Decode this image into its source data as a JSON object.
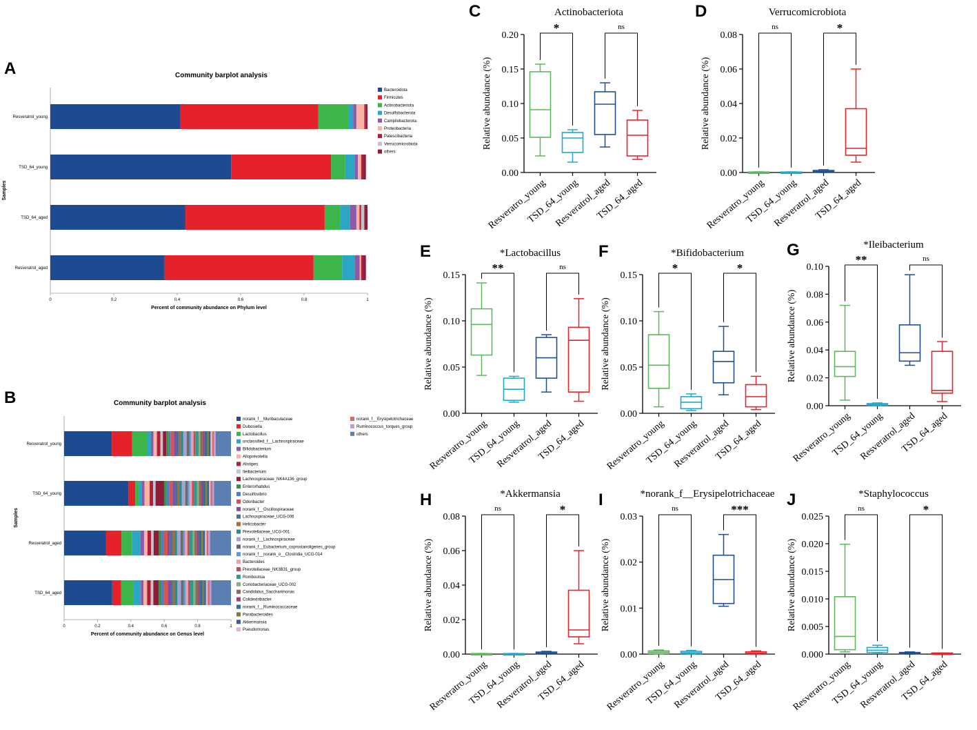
{
  "colors": {
    "green": "#5cb85c",
    "cyan": "#22a7c9",
    "blue": "#1f4e8f",
    "red": "#e0262d",
    "bar_blue": "#1d4a91",
    "bar_red": "#e5222b",
    "bar_green": "#3db54a",
    "bar_cyan": "#2ba6c4",
    "bar_purple": "#8e5aa8",
    "bar_salmon": "#f8b3a3",
    "bar_darkred": "#b01e3a",
    "bar_grey": "#c0c4cc",
    "bar_maroon": "#8f1d3a"
  },
  "stacked_legend_colors": {
    "phylum": [
      "#1d4a91",
      "#e5222b",
      "#3db54a",
      "#2ba6c4",
      "#8e5aa8",
      "#f8b3a3",
      "#b01e3a",
      "#c0c4cc",
      "#8f1d3a"
    ],
    "genus": [
      "#1d4a91",
      "#e5222b",
      "#3db54a",
      "#2ba6c4",
      "#8e5aa8",
      "#f8b3a3",
      "#b01e3a",
      "#c0c4cc",
      "#8f1d3a",
      "#3d8f4a",
      "#4a7fc0",
      "#d9534f",
      "#7c4ea3",
      "#4e6d97",
      "#b06a2b",
      "#2d8a8a",
      "#a3a3d1",
      "#6a6a6a",
      "#5c9bd5",
      "#e8a0b0",
      "#c44d58",
      "#2a9d8f",
      "#8ab07d",
      "#8c6b5e",
      "#a04070",
      "#2c6fa0",
      "#7e7e30",
      "#355e9b",
      "#e8b4c0",
      "#d36a6a",
      "#c39bd3",
      "#5a7fb0"
    ]
  },
  "chart_data": [
    {
      "panel": "A",
      "type": "bar",
      "orientation": "horizontal-stacked",
      "title": "Community barplot analysis",
      "xlabel": "Percent of community abundance on Phylum level",
      "ylabel": "Samples",
      "xlim": [
        0,
        1
      ],
      "xticks": [
        "0",
        "0.2",
        "0.4",
        "0.6",
        "0.8",
        "1"
      ],
      "categories": [
        "Resveratrol_young",
        "TSD_64_young",
        "TSD_64_aged",
        "Resveratrol_aged"
      ],
      "legend": [
        "Bacteroidota",
        "Firmicutes",
        "Actinobacteriota",
        "Desulfobacterota",
        "Campilobacterota",
        "Proteobacteria",
        "Patescibacteria",
        "Verrucomicrobiota",
        "others"
      ],
      "series": [
        {
          "name": "Bacteroidota",
          "values": [
            0.41,
            0.57,
            0.425,
            0.36
          ]
        },
        {
          "name": "Firmicutes",
          "values": [
            0.435,
            0.315,
            0.44,
            0.47
          ]
        },
        {
          "name": "Actinobacteriota",
          "values": [
            0.095,
            0.045,
            0.05,
            0.09
          ]
        },
        {
          "name": "Desulfobacterota",
          "values": [
            0.015,
            0.03,
            0.03,
            0.04
          ]
        },
        {
          "name": "Campilobacterota",
          "values": [
            0.01,
            0.01,
            0.02,
            0.015
          ]
        },
        {
          "name": "Proteobacteria",
          "values": [
            0.025,
            0.01,
            0.01,
            0.005
          ]
        },
        {
          "name": "Patescibacteria",
          "values": [
            0.005,
            0.005,
            0.005,
            0.005
          ]
        },
        {
          "name": "Verrucomicrobiota",
          "values": [
            0.0,
            0.0,
            0.01,
            0.0
          ]
        },
        {
          "name": "others",
          "values": [
            0.005,
            0.01,
            0.01,
            0.01
          ]
        }
      ]
    },
    {
      "panel": "B",
      "type": "bar",
      "orientation": "horizontal-stacked",
      "title": "Community barplot analysis",
      "xlabel": "Percent of community abundance on Genus level",
      "ylabel": "Samples",
      "xlim": [
        0,
        1
      ],
      "xticks": [
        "0",
        "0.2",
        "0.4",
        "0.6",
        "0.8",
        "1"
      ],
      "categories": [
        "Resveratrol_young",
        "TSD_64_young",
        "Resveratrol_aged",
        "TSD_64_aged"
      ],
      "legend": [
        "norank_f__Muribaculaceae",
        "Dubosiella",
        "Lactobacillus",
        "unclassified_f__Lachnospiraceae",
        "Bifidobacterium",
        "Alloprevotella",
        "Alistipes",
        "Ileibacterium",
        "Lachnospiraceae_NK4A136_group",
        "Enterorhabdus",
        "Desulfovibrio",
        "Odoribacter",
        "norank_f__Oscillospiraceae",
        "Lachnospiraceae_UCG-006",
        "Helicobacter",
        "Prevotellaceae_UCG-001",
        "norank_f__Lachnospiraceae",
        "norank_f__Eubacterium_coprostanoligenes_group",
        "norank_f__norank_o__Clostridia_UCG-014",
        "Bacteroides",
        "Prevotellaceae_NK3B31_group",
        "Romboutsia",
        "Coriobacteriaceae_UCG-002",
        "Candidatus_Saccharimonas",
        "Colidextribacter",
        "norank_f__Ruminococcaceae",
        "Parabacteroides",
        "Akkermansia",
        "Pseudomonas",
        "norank_f__Erysipelotrichaceae",
        "Ruminococcus_torques_group",
        "others"
      ],
      "series_totals": [
        [
          0.28,
          0.12,
          0.09,
          0.02,
          0.015,
          0.02,
          0.02,
          0.015,
          0.02,
          0.015,
          0.01,
          0.02,
          0.015,
          0.015,
          0.01,
          0.015,
          0.02,
          0.015,
          0.01,
          0.015,
          0.01,
          0.02,
          0.01,
          0.015,
          0.01,
          0.015,
          0.01,
          0.01,
          0.01,
          0.01,
          0.01,
          0.09
        ],
        [
          0.38,
          0.04,
          0.02,
          0.02,
          0.015,
          0.03,
          0.02,
          0.015,
          0.05,
          0.015,
          0.015,
          0.02,
          0.015,
          0.015,
          0.01,
          0.015,
          0.02,
          0.015,
          0.01,
          0.015,
          0.01,
          0.02,
          0.01,
          0.015,
          0.01,
          0.015,
          0.01,
          0.01,
          0.01,
          0.01,
          0.01,
          0.1
        ],
        [
          0.24,
          0.09,
          0.06,
          0.05,
          0.02,
          0.02,
          0.02,
          0.015,
          0.03,
          0.015,
          0.015,
          0.02,
          0.015,
          0.015,
          0.01,
          0.015,
          0.02,
          0.015,
          0.01,
          0.015,
          0.01,
          0.02,
          0.01,
          0.015,
          0.01,
          0.015,
          0.01,
          0.01,
          0.01,
          0.01,
          0.01,
          0.12
        ],
        [
          0.27,
          0.05,
          0.07,
          0.04,
          0.015,
          0.02,
          0.02,
          0.015,
          0.03,
          0.015,
          0.015,
          0.02,
          0.015,
          0.015,
          0.01,
          0.015,
          0.02,
          0.015,
          0.01,
          0.015,
          0.01,
          0.02,
          0.01,
          0.015,
          0.01,
          0.015,
          0.01,
          0.01,
          0.01,
          0.01,
          0.01,
          0.11
        ]
      ]
    },
    {
      "panel": "C",
      "type": "box",
      "title": "Actinobacteriota",
      "ylabel": "Relative abundance (%)",
      "ylim": [
        0,
        0.2
      ],
      "yticks": [
        "0.00",
        "0.05",
        "0.10",
        "0.15",
        "0.20"
      ],
      "categories": [
        "Resveratro_young",
        "TSD_64_young",
        "Resveratrol_aged",
        "TSD_64_aged"
      ],
      "boxes": [
        {
          "min": 0.024,
          "q1": 0.051,
          "median": 0.091,
          "q3": 0.146,
          "max": 0.157
        },
        {
          "min": 0.015,
          "q1": 0.029,
          "median": 0.05,
          "q3": 0.058,
          "max": 0.062
        },
        {
          "min": 0.037,
          "q1": 0.055,
          "median": 0.099,
          "q3": 0.117,
          "max": 0.13
        },
        {
          "min": 0.019,
          "q1": 0.024,
          "median": 0.054,
          "q3": 0.076,
          "max": 0.09
        }
      ],
      "sig": [
        {
          "pair": [
            0,
            1
          ],
          "label": "*"
        },
        {
          "pair": [
            2,
            3
          ],
          "label": "ns"
        }
      ]
    },
    {
      "panel": "D",
      "type": "box",
      "title": "Verrucomicrobiota",
      "ylabel": "Relative abundance (%)",
      "ylim": [
        0,
        0.08
      ],
      "yticks": [
        "0.00",
        "0.02",
        "0.04",
        "0.06",
        "0.08"
      ],
      "categories": [
        "Resveratro_young",
        "TSD_64_young",
        "Resveratrol_aged",
        "TSD_64_aged"
      ],
      "boxes": [
        {
          "min": 0,
          "q1": 0,
          "median": 0,
          "q3": 0.0003,
          "max": 0.0004
        },
        {
          "min": 0,
          "q1": 0,
          "median": 0,
          "q3": 0.0003,
          "max": 0.0004
        },
        {
          "min": 0,
          "q1": 0.0002,
          "median": 0.0006,
          "q3": 0.0012,
          "max": 0.0016
        },
        {
          "min": 0.006,
          "q1": 0.01,
          "median": 0.014,
          "q3": 0.037,
          "max": 0.06
        }
      ],
      "sig": [
        {
          "pair": [
            0,
            1
          ],
          "label": "ns"
        },
        {
          "pair": [
            2,
            3
          ],
          "label": "*"
        }
      ]
    },
    {
      "panel": "E",
      "type": "box",
      "title": "*Lactobacillus",
      "ylabel": "Relative abundance (%)",
      "ylim": [
        0,
        0.15
      ],
      "yticks": [
        "0.00",
        "0.05",
        "0.10",
        "0.15"
      ],
      "categories": [
        "Resveratro_young",
        "TSD_64_young",
        "Resveratrol_aged",
        "TSD_64_aged"
      ],
      "boxes": [
        {
          "min": 0.041,
          "q1": 0.063,
          "median": 0.096,
          "q3": 0.113,
          "max": 0.141
        },
        {
          "min": 0.012,
          "q1": 0.014,
          "median": 0.026,
          "q3": 0.038,
          "max": 0.04
        },
        {
          "min": 0.023,
          "q1": 0.038,
          "median": 0.06,
          "q3": 0.082,
          "max": 0.085
        },
        {
          "min": 0.013,
          "q1": 0.023,
          "median": 0.079,
          "q3": 0.093,
          "max": 0.124
        }
      ],
      "sig": [
        {
          "pair": [
            0,
            1
          ],
          "label": "**"
        },
        {
          "pair": [
            2,
            3
          ],
          "label": "ns"
        }
      ]
    },
    {
      "panel": "F",
      "type": "box",
      "title": "*Bifidobacterium",
      "ylabel": "Relative abundance (%)",
      "ylim": [
        0,
        0.15
      ],
      "yticks": [
        "0.00",
        "0.05",
        "0.10",
        "0.15"
      ],
      "categories": [
        "Resveratro_young",
        "TSD_64_young",
        "Resveratrol_aged",
        "TSD_64_aged"
      ],
      "boxes": [
        {
          "min": 0.007,
          "q1": 0.027,
          "median": 0.052,
          "q3": 0.085,
          "max": 0.11
        },
        {
          "min": 0.003,
          "q1": 0.005,
          "median": 0.012,
          "q3": 0.018,
          "max": 0.021
        },
        {
          "min": 0.02,
          "q1": 0.033,
          "median": 0.056,
          "q3": 0.067,
          "max": 0.094
        },
        {
          "min": 0.004,
          "q1": 0.007,
          "median": 0.018,
          "q3": 0.031,
          "max": 0.04
        }
      ],
      "sig": [
        {
          "pair": [
            0,
            1
          ],
          "label": "*"
        },
        {
          "pair": [
            2,
            3
          ],
          "label": "*"
        }
      ]
    },
    {
      "panel": "G",
      "type": "box",
      "title": "*Ileibacterium",
      "ylabel": "Relative abundance (%)",
      "ylim": [
        0,
        0.1
      ],
      "yticks": [
        "0.00",
        "0.02",
        "0.04",
        "0.06",
        "0.08",
        "0.10"
      ],
      "categories": [
        "Resveratro_young",
        "TSD_64_young",
        "Resveratrol_aged",
        "TSD_64_aged"
      ],
      "boxes": [
        {
          "min": 0.004,
          "q1": 0.021,
          "median": 0.028,
          "q3": 0.039,
          "max": 0.072
        },
        {
          "min": 0,
          "q1": 0.0003,
          "median": 0.0008,
          "q3": 0.0015,
          "max": 0.002
        },
        {
          "min": 0.029,
          "q1": 0.032,
          "median": 0.038,
          "q3": 0.058,
          "max": 0.094
        },
        {
          "min": 0.003,
          "q1": 0.009,
          "median": 0.011,
          "q3": 0.039,
          "max": 0.046
        }
      ],
      "sig": [
        {
          "pair": [
            0,
            1
          ],
          "label": "**"
        },
        {
          "pair": [
            2,
            3
          ],
          "label": "ns"
        }
      ]
    },
    {
      "panel": "H",
      "type": "box",
      "title": "*Akkermansia",
      "ylabel": "Relative abundance (%)",
      "ylim": [
        0,
        0.08
      ],
      "yticks": [
        "0.00",
        "0.02",
        "0.04",
        "0.06",
        "0.08"
      ],
      "categories": [
        "Resveratro_young",
        "TSD_64_young",
        "Resveratrol_aged",
        "TSD_64_aged"
      ],
      "boxes": [
        {
          "min": 0,
          "q1": 0,
          "median": 0,
          "q3": 0.0003,
          "max": 0.0004
        },
        {
          "min": 0,
          "q1": 0,
          "median": 0,
          "q3": 0.0003,
          "max": 0.0004
        },
        {
          "min": 0,
          "q1": 0.0002,
          "median": 0.0006,
          "q3": 0.0012,
          "max": 0.0016
        },
        {
          "min": 0.006,
          "q1": 0.01,
          "median": 0.014,
          "q3": 0.037,
          "max": 0.06
        }
      ],
      "sig": [
        {
          "pair": [
            0,
            1
          ],
          "label": "ns"
        },
        {
          "pair": [
            2,
            3
          ],
          "label": "*"
        }
      ]
    },
    {
      "panel": "I",
      "type": "box",
      "title": "*norank_f__Erysipelotrichaceae",
      "ylabel": "Relative abundance (%)",
      "ylim": [
        0,
        0.03
      ],
      "yticks": [
        "0.00",
        "0.01",
        "0.02",
        "0.03"
      ],
      "categories": [
        "Resveratro_young",
        "TSD_64_young",
        "Resveratrol_aged",
        "TSD_64_aged"
      ],
      "boxes": [
        {
          "min": 0,
          "q1": 0.0001,
          "median": 0.0004,
          "q3": 0.0007,
          "max": 0.0009
        },
        {
          "min": 0,
          "q1": 0.0001,
          "median": 0.0003,
          "q3": 0.0006,
          "max": 0.0008
        },
        {
          "min": 0.0104,
          "q1": 0.011,
          "median": 0.0162,
          "q3": 0.0215,
          "max": 0.026
        },
        {
          "min": 0,
          "q1": 0.0001,
          "median": 0.0002,
          "q3": 0.0005,
          "max": 0.0007
        }
      ],
      "sig": [
        {
          "pair": [
            0,
            1
          ],
          "label": "ns"
        },
        {
          "pair": [
            2,
            3
          ],
          "label": "***"
        }
      ]
    },
    {
      "panel": "J",
      "type": "box",
      "title": "*Staphylococcus",
      "ylabel": "Relative abundance (%)",
      "ylim": [
        0,
        0.025
      ],
      "yticks": [
        "0.000",
        "0.005",
        "0.010",
        "0.015",
        "0.020",
        "0.025"
      ],
      "categories": [
        "Resveratro_young",
        "TSD_64_young",
        "Resveratrol_aged",
        "TSD_64_aged"
      ],
      "boxes": [
        {
          "min": 0.0004,
          "q1": 0.0008,
          "median": 0.0032,
          "q3": 0.0104,
          "max": 0.0199
        },
        {
          "min": 0.0001,
          "q1": 0.0003,
          "median": 0.0007,
          "q3": 0.0012,
          "max": 0.0016
        },
        {
          "min": 0,
          "q1": 0.0001,
          "median": 0.0002,
          "q3": 0.0003,
          "max": 0.0004
        },
        {
          "min": 0,
          "q1": 0,
          "median": 0.0001,
          "q3": 0.0002,
          "max": 0.0002
        }
      ],
      "sig": [
        {
          "pair": [
            0,
            1
          ],
          "label": "ns"
        },
        {
          "pair": [
            2,
            3
          ],
          "label": "*"
        }
      ]
    }
  ]
}
